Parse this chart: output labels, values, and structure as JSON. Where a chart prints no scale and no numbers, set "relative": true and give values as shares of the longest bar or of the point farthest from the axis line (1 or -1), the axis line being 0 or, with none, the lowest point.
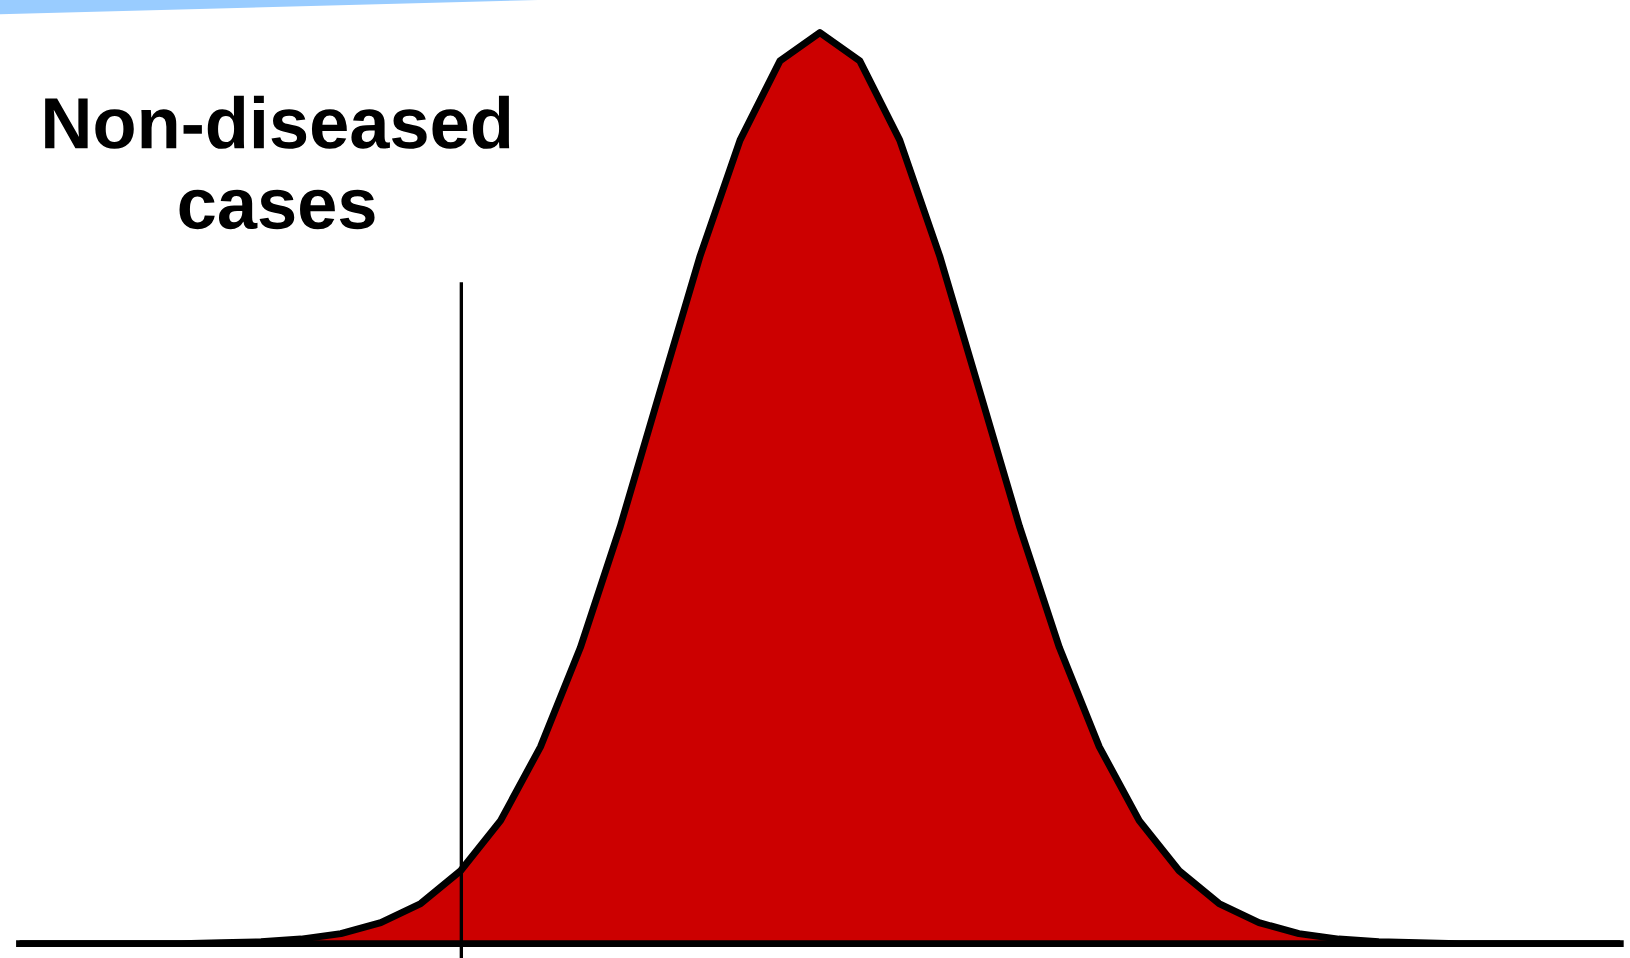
{
  "chart_data": {
    "type": "area",
    "relative": true,
    "categories": [
      null,
      null,
      null,
      null,
      null,
      null,
      null,
      null,
      null,
      null,
      null,
      null,
      null,
      null,
      null,
      null,
      null,
      null,
      null,
      null,
      null,
      null,
      null,
      null,
      null,
      null,
      null,
      null,
      null,
      null,
      null,
      null,
      null,
      null,
      null,
      null,
      null,
      null,
      null,
      null,
      null
    ],
    "series": [
      {
        "color": "#cc0000",
        "values": [
          0,
          0,
          0,
          0,
          0,
          0.001,
          0.002,
          0.005,
          0.011,
          0.023,
          0.044,
          0.08,
          0.135,
          0.216,
          0.325,
          0.458,
          0.607,
          0.755,
          0.882,
          0.969,
          1,
          0.969,
          0.882,
          0.755,
          0.607,
          0.458,
          0.325,
          0.216,
          0.135,
          0.08,
          0.044,
          0.023,
          0.011,
          0.005,
          0.002,
          0.001,
          0,
          0,
          0,
          0,
          0
        ]
      }
    ],
    "annotations": [
      "Non-diseased\ncases"
    ],
    "grid": false,
    "legend": false
  }
}
